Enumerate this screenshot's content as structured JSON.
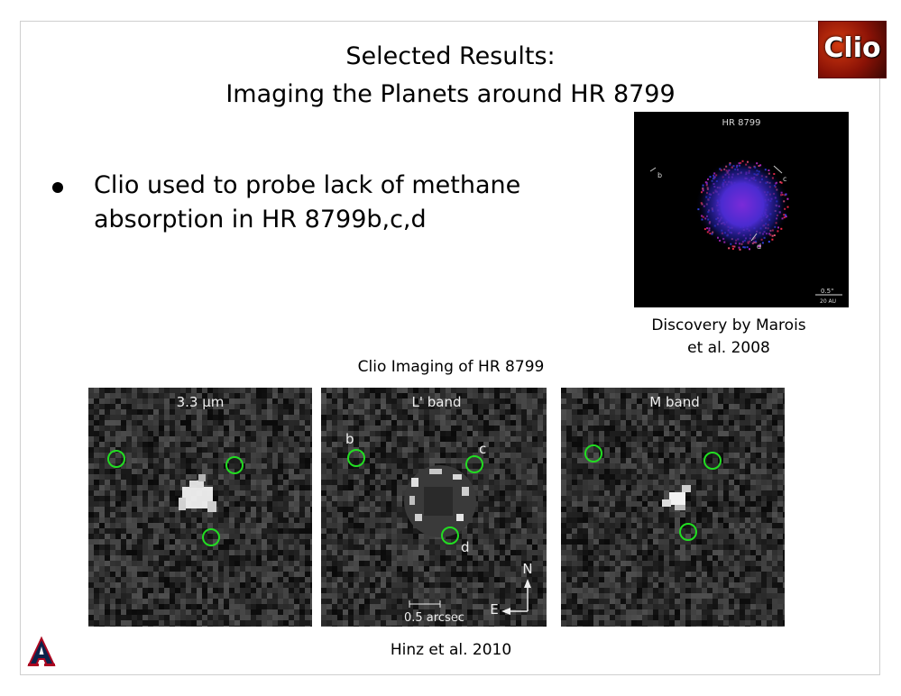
{
  "slide": {
    "title_line1": "Selected Results:",
    "title_line2": "Imaging the Planets around HR 8799",
    "bullet": "Clio used to probe lack of methane absorption in HR 8799b,c,d",
    "discovery_caption_line1": "Discovery by Marois",
    "discovery_caption_line2": "et al. 2008",
    "clio_imaging_caption": "Clio Imaging of HR 8799",
    "credit": "Hinz et al. 2010",
    "logo_text": "Clio"
  },
  "discovery_image": {
    "title": "HR 8799",
    "labels": [
      "b",
      "c",
      "d"
    ],
    "scale_top": "0.5\"",
    "scale_bottom": "20 AU"
  },
  "panels": [
    {
      "label": "3.3 μm"
    },
    {
      "label": "L' band",
      "planet_labels": [
        "b",
        "c",
        "d"
      ],
      "scale_label": "0.5 arcsec",
      "north": "N",
      "east": "E"
    },
    {
      "label": "M band"
    }
  ],
  "colors": {
    "circle": "#22dd22",
    "slide_border": "#cfcfcf"
  }
}
